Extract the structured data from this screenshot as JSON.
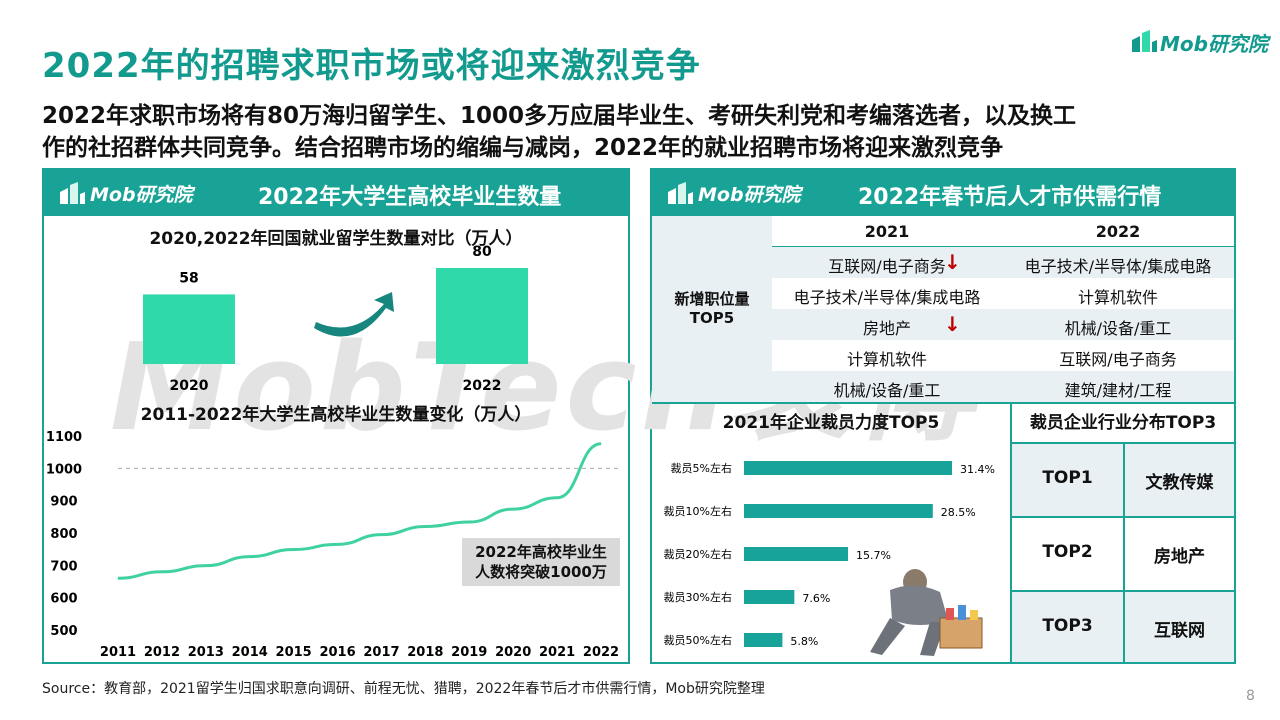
{
  "header": {
    "title": "2022年的招聘求职市场或将迎来激烈竞争",
    "logo_text": "Mob研究院",
    "subtitle_line1": "2022年求职市场将有80万海归留学生、1000多万应届毕业生、考研失利党和考编落选者，以及换工",
    "subtitle_line2": "作的社招群体共同竞争。结合招聘市场的缩编与减岗，2022年的就业招聘市场将迎来激烈竞争"
  },
  "watermark": "MobTech袤博",
  "left_panel": {
    "logo_text": "Mob研究院",
    "title": "2022年大学生高校毕业生数量"
  },
  "right_panel": {
    "logo_text": "Mob研究院",
    "title": "2022年春节后人才市供需行情",
    "table": {
      "col_2021": "2021",
      "col_2022": "2022",
      "row_header_line1": "新增职位量",
      "row_header_line2": "TOP5",
      "rows": [
        {
          "y2021": "互联网/电子商务",
          "down2021": true,
          "y2022": "电子技术/半导体/集成电路"
        },
        {
          "y2021": "电子技术/半导体/集成电路",
          "down2021": false,
          "y2022": "计算机软件"
        },
        {
          "y2021": "房地产",
          "down2021": true,
          "y2022": "机械/设备/重工"
        },
        {
          "y2021": "计算机软件",
          "down2021": false,
          "y2022": "互联网/电子商务"
        },
        {
          "y2021": "机械/设备/重工",
          "down2021": false,
          "y2022": "建筑/建材/工程"
        }
      ]
    },
    "top3": {
      "title": "裁员企业行业分布TOP3",
      "rows": [
        {
          "rank": "TOP1",
          "industry": "文教传媒"
        },
        {
          "rank": "TOP2",
          "industry": "房地产"
        },
        {
          "rank": "TOP3",
          "industry": "互联网"
        }
      ]
    }
  },
  "callout": {
    "line1": "2022年高校毕业生",
    "line2": "人数将突破1000万"
  },
  "footer": {
    "source": "Source：教育部，2021留学生归国求职意向调研、前程无忧、猎聘，2022年春节后才市供需行情，Mob研究院整理",
    "page_number": "8"
  },
  "colors": {
    "accent": "#19a396",
    "bar_green": "#2fd9a9",
    "bar_teal": "#17a39a",
    "down_arrow": "#c00000"
  },
  "chart_data": [
    {
      "type": "bar",
      "title": "2020,2022年回国就业留学生数量对比（万人）",
      "categories": [
        "2020",
        "2022"
      ],
      "values": [
        58,
        80
      ],
      "value_labels": [
        "58",
        "80"
      ]
    },
    {
      "type": "line",
      "title": "2011-2022年大学生高校毕业生数量变化（万人）",
      "x": [
        "2011",
        "2012",
        "2013",
        "2014",
        "2015",
        "2016",
        "2017",
        "2018",
        "2019",
        "2020",
        "2021",
        "2022"
      ],
      "values": [
        660,
        680,
        699,
        727,
        749,
        765,
        795,
        820,
        834,
        874,
        909,
        1076
      ],
      "y_ticks": [
        "1100",
        "1000",
        "900",
        "800",
        "700",
        "600",
        "500"
      ],
      "ylim": [
        500,
        1100
      ],
      "reference_line": 1000
    },
    {
      "type": "bar",
      "orientation": "horizontal",
      "title": "2021年企业裁员力度TOP5",
      "categories": [
        "裁员5%左右",
        "裁员10%左右",
        "裁员20%左右",
        "裁员30%左右",
        "裁员50%左右"
      ],
      "values": [
        31.4,
        28.5,
        15.7,
        7.6,
        5.8
      ],
      "value_labels": [
        "31.4%",
        "28.5%",
        "15.7%",
        "7.6%",
        "5.8%"
      ]
    }
  ]
}
